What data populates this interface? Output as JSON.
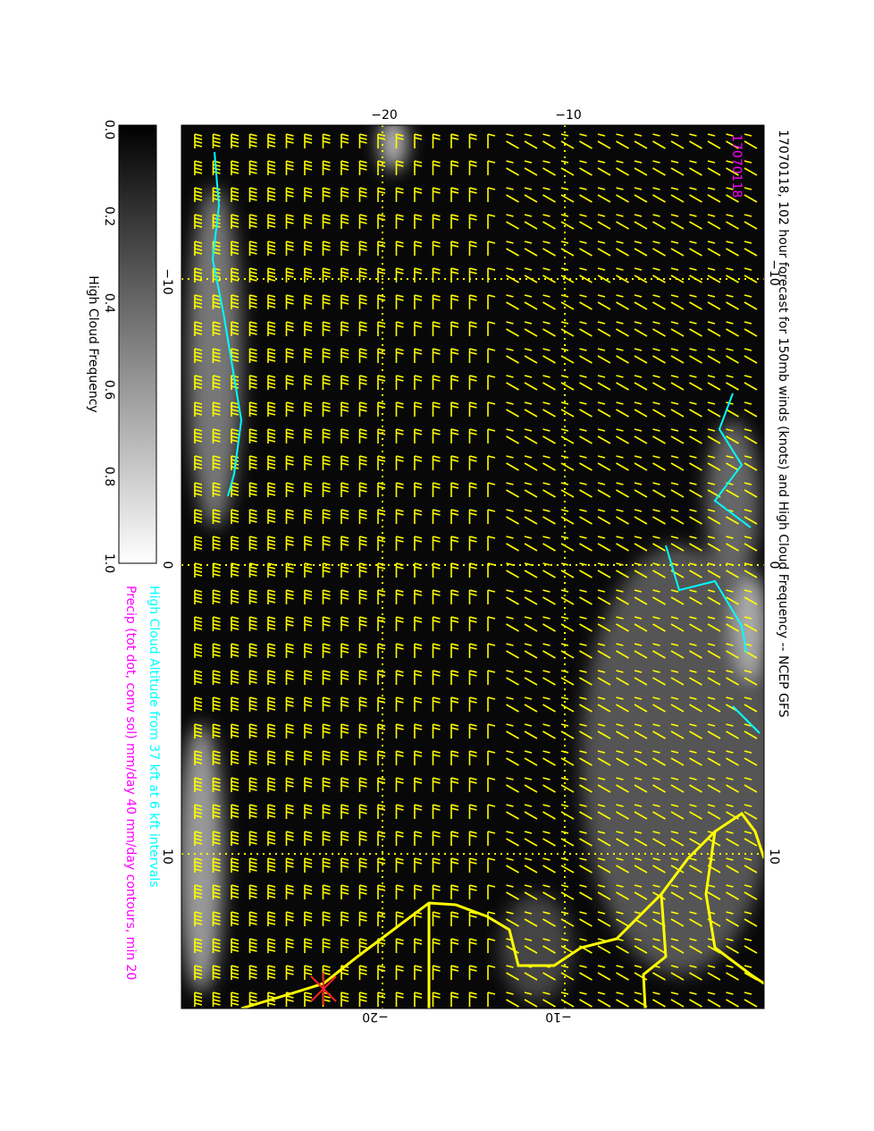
{
  "header": {
    "title": "17070118, 102 hour forecast for 150mb winds (knots) and High Cloud Frequency -- NCEP GFS",
    "stamp": "17070118"
  },
  "axes": {
    "top": [
      "−20",
      "−10"
    ],
    "bottom": [
      "−20",
      "−10"
    ],
    "left": [
      "−10",
      "0",
      "10"
    ],
    "right": [
      "−10",
      "0",
      "10"
    ]
  },
  "colorbar": {
    "ticks": [
      "0.0",
      "0.2",
      "0.4",
      "0.6",
      "0.8",
      "1.0"
    ],
    "label": "High Cloud Frequency"
  },
  "legend": [
    "High Cloud Altitude from 37 kft at 6 kft intervals",
    "Precip (tot dot, conv sol) mm/day 40 mm/day contours, min 20"
  ]
}
